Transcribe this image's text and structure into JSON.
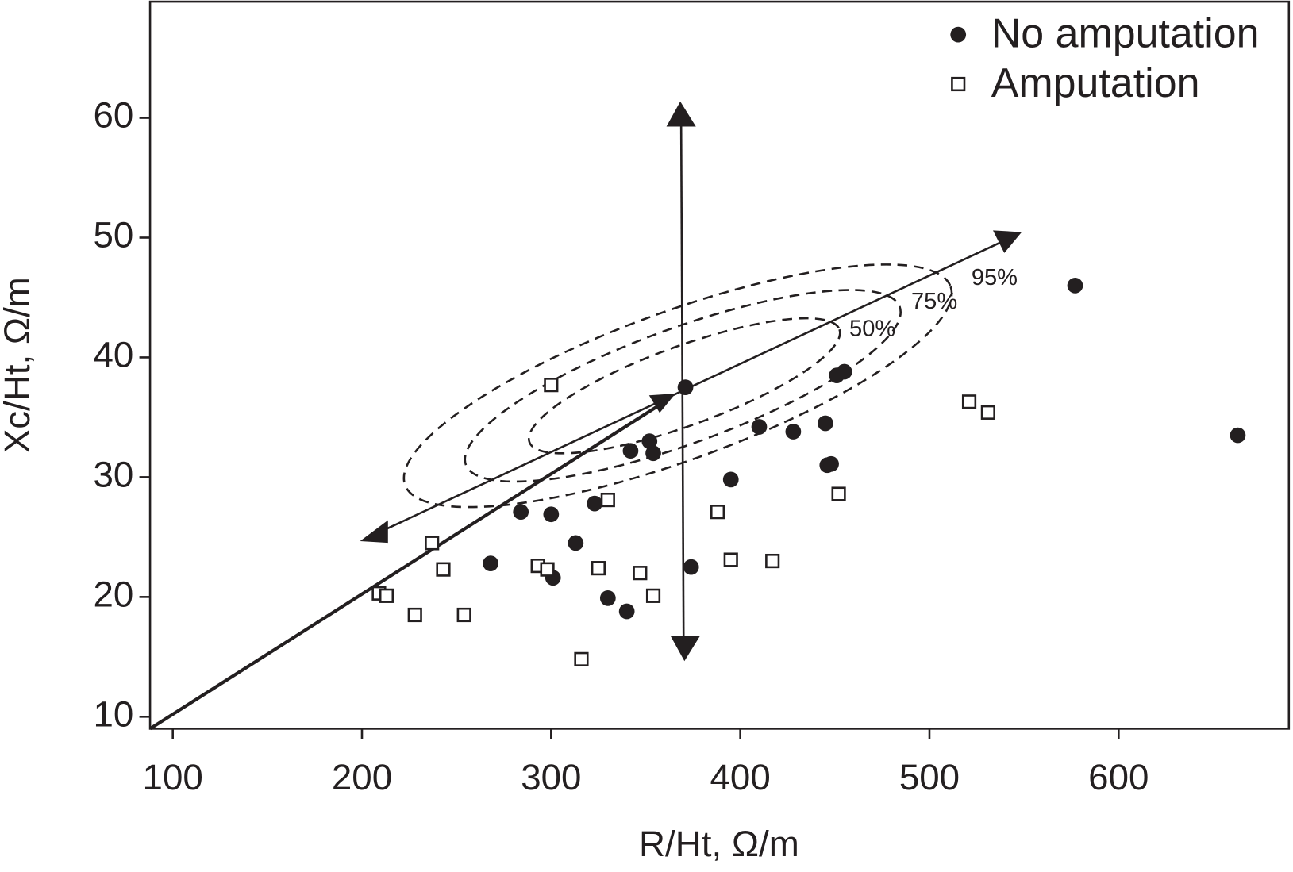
{
  "chart_data": {
    "type": "scatter",
    "xlabel": "R/Ht, Ω/m",
    "ylabel": "Xc/Ht, Ω/m",
    "xlim": [
      88,
      690
    ],
    "ylim": [
      9,
      69.7
    ],
    "xticks": [
      100,
      200,
      300,
      400,
      500,
      600
    ],
    "yticks": [
      10,
      20,
      30,
      40,
      50,
      60
    ],
    "legend": "upper right",
    "annotations": [
      "50%",
      "75%",
      "95%"
    ],
    "series": [
      {
        "name": "No amputation",
        "marker": "circle",
        "color": "#231f20",
        "x": [
          577,
          663,
          371,
          451,
          455,
          410,
          428,
          445,
          446,
          448,
          395,
          352,
          342,
          354,
          284,
          300,
          323,
          313,
          268,
          301,
          330,
          340,
          374
        ],
        "y": [
          46,
          33.5,
          37.5,
          38.5,
          38.8,
          34.2,
          33.8,
          34.5,
          31.0,
          31.1,
          29.8,
          33.0,
          32.2,
          32.0,
          27.1,
          26.9,
          27.8,
          24.5,
          22.8,
          21.6,
          19.9,
          18.8,
          22.5
        ]
      },
      {
        "name": "Amputation",
        "marker": "square",
        "color": "#231f20",
        "x": [
          300,
          521,
          531,
          452,
          330,
          388,
          237,
          243,
          293,
          298,
          325,
          347,
          395,
          417,
          354,
          209,
          213,
          228,
          254,
          316
        ],
        "y": [
          37.7,
          36.3,
          35.4,
          28.6,
          28.1,
          27.1,
          24.5,
          22.3,
          22.6,
          22.3,
          22.4,
          22.0,
          23.1,
          23.0,
          20.1,
          20.3,
          20.1,
          18.5,
          18.5,
          14.8
        ]
      }
    ]
  }
}
